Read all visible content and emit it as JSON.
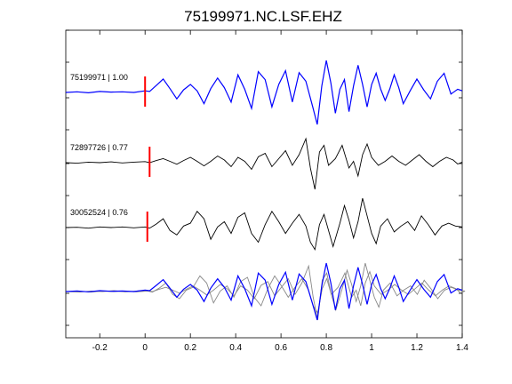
{
  "chart_data": {
    "type": "line",
    "title": "75199971.NC.LSF.EHZ",
    "xlabel": "",
    "ylabel": "",
    "xlim": [
      -0.35,
      1.4
    ],
    "x_ticks": [
      -0.2,
      0,
      0.2,
      0.4,
      0.6,
      0.8,
      1,
      1.2,
      1.4
    ],
    "x_tick_labels": [
      "-0.2",
      "0",
      "0.2",
      "0.4",
      "0.6",
      "0.8",
      "1",
      "1.2",
      "1.4"
    ],
    "grid": false,
    "legend": "none",
    "pick_time": 0,
    "colors": {
      "master": "#0000ff",
      "trace": "#000000",
      "overlay": "#888888",
      "pick": "#ff0000"
    },
    "traces": [
      {
        "label": "75199971 | 1.00",
        "pick_x": 0.0,
        "style": "master",
        "points": [
          [
            -0.35,
            0
          ],
          [
            -0.3,
            0.02
          ],
          [
            -0.25,
            -0.01
          ],
          [
            -0.2,
            0.03
          ],
          [
            -0.15,
            0.01
          ],
          [
            -0.1,
            0.02
          ],
          [
            -0.05,
            0
          ],
          [
            0,
            0.05
          ],
          [
            0.02,
            0.03
          ],
          [
            0.05,
            0.22
          ],
          [
            0.08,
            0.42
          ],
          [
            0.11,
            0.12
          ],
          [
            0.14,
            -0.2
          ],
          [
            0.17,
            0.08
          ],
          [
            0.2,
            0.25
          ],
          [
            0.23,
            0.05
          ],
          [
            0.26,
            -0.35
          ],
          [
            0.29,
            0.12
          ],
          [
            0.32,
            0.45
          ],
          [
            0.35,
            0.15
          ],
          [
            0.38,
            -0.3
          ],
          [
            0.41,
            0.55
          ],
          [
            0.44,
            0.1
          ],
          [
            0.47,
            -0.5
          ],
          [
            0.5,
            0.65
          ],
          [
            0.53,
            0.4
          ],
          [
            0.56,
            -0.45
          ],
          [
            0.59,
            0.25
          ],
          [
            0.62,
            0.68
          ],
          [
            0.65,
            -0.3
          ],
          [
            0.68,
            0.62
          ],
          [
            0.71,
            0.35
          ],
          [
            0.74,
            -0.45
          ],
          [
            0.76,
            -1.0
          ],
          [
            0.78,
            0.2
          ],
          [
            0.8,
            1.0
          ],
          [
            0.82,
            0.3
          ],
          [
            0.84,
            -0.65
          ],
          [
            0.86,
            0.1
          ],
          [
            0.88,
            0.4
          ],
          [
            0.9,
            -0.6
          ],
          [
            0.92,
            0.2
          ],
          [
            0.94,
            0.85
          ],
          [
            0.96,
            0.25
          ],
          [
            0.98,
            -0.45
          ],
          [
            1.0,
            0.25
          ],
          [
            1.02,
            0.6
          ],
          [
            1.04,
            0.1
          ],
          [
            1.06,
            -0.25
          ],
          [
            1.08,
            0.1
          ],
          [
            1.1,
            0.55
          ],
          [
            1.12,
            0.15
          ],
          [
            1.14,
            -0.35
          ],
          [
            1.17,
            0.05
          ],
          [
            1.2,
            0.42
          ],
          [
            1.23,
            0.08
          ],
          [
            1.26,
            -0.2
          ],
          [
            1.29,
            0.35
          ],
          [
            1.32,
            0.6
          ],
          [
            1.35,
            -0.05
          ],
          [
            1.38,
            0.1
          ],
          [
            1.4,
            0.05
          ]
        ]
      },
      {
        "label": "72897726 | 0.77",
        "pick_x": 0.02,
        "style": "trace",
        "points": [
          [
            -0.35,
            0
          ],
          [
            -0.3,
            -0.02
          ],
          [
            -0.25,
            0.02
          ],
          [
            -0.2,
            0
          ],
          [
            -0.15,
            0.03
          ],
          [
            -0.1,
            -0.01
          ],
          [
            -0.05,
            0.02
          ],
          [
            0,
            0.04
          ],
          [
            0.02,
            0
          ],
          [
            0.05,
            0.08
          ],
          [
            0.08,
            0.15
          ],
          [
            0.11,
            0.05
          ],
          [
            0.14,
            -0.06
          ],
          [
            0.17,
            0.08
          ],
          [
            0.2,
            0.2
          ],
          [
            0.23,
            0.05
          ],
          [
            0.26,
            -0.12
          ],
          [
            0.29,
            0.05
          ],
          [
            0.32,
            0.25
          ],
          [
            0.35,
            0.1
          ],
          [
            0.38,
            -0.15
          ],
          [
            0.41,
            0.2
          ],
          [
            0.44,
            0.05
          ],
          [
            0.47,
            -0.25
          ],
          [
            0.5,
            0.22
          ],
          [
            0.53,
            0.35
          ],
          [
            0.56,
            -0.15
          ],
          [
            0.59,
            0.15
          ],
          [
            0.62,
            0.45
          ],
          [
            0.65,
            -0.1
          ],
          [
            0.68,
            0.3
          ],
          [
            0.71,
            0.9
          ],
          [
            0.73,
            -0.2
          ],
          [
            0.75,
            -1.0
          ],
          [
            0.77,
            0.4
          ],
          [
            0.79,
            0.65
          ],
          [
            0.81,
            -0.1
          ],
          [
            0.84,
            0.15
          ],
          [
            0.87,
            0.65
          ],
          [
            0.9,
            -0.2
          ],
          [
            0.92,
            0.05
          ],
          [
            0.94,
            -0.5
          ],
          [
            0.96,
            0.3
          ],
          [
            0.98,
            0.7
          ],
          [
            1.0,
            0.2
          ],
          [
            1.03,
            -0.1
          ],
          [
            1.06,
            0.05
          ],
          [
            1.09,
            0.25
          ],
          [
            1.12,
            0.05
          ],
          [
            1.15,
            -0.1
          ],
          [
            1.18,
            0.1
          ],
          [
            1.21,
            0.3
          ],
          [
            1.24,
            0.05
          ],
          [
            1.27,
            -0.15
          ],
          [
            1.3,
            0.05
          ],
          [
            1.33,
            0.2
          ],
          [
            1.36,
            0.1
          ],
          [
            1.38,
            -0.05
          ],
          [
            1.4,
            0.02
          ]
        ]
      },
      {
        "label": "30052524 | 0.76",
        "pick_x": 0.01,
        "style": "trace",
        "points": [
          [
            -0.35,
            0
          ],
          [
            -0.3,
            0.01
          ],
          [
            -0.25,
            -0.02
          ],
          [
            -0.2,
            0.02
          ],
          [
            -0.15,
            0
          ],
          [
            -0.1,
            0.02
          ],
          [
            -0.05,
            -0.01
          ],
          [
            0,
            0.02
          ],
          [
            0.02,
            -0.02
          ],
          [
            0.05,
            0.12
          ],
          [
            0.08,
            0.3
          ],
          [
            0.11,
            -0.1
          ],
          [
            0.14,
            -0.25
          ],
          [
            0.17,
            0.05
          ],
          [
            0.2,
            0.15
          ],
          [
            0.23,
            0.55
          ],
          [
            0.26,
            0.3
          ],
          [
            0.29,
            -0.4
          ],
          [
            0.32,
            0.02
          ],
          [
            0.35,
            0.2
          ],
          [
            0.38,
            -0.2
          ],
          [
            0.41,
            0.35
          ],
          [
            0.44,
            0.5
          ],
          [
            0.47,
            -0.2
          ],
          [
            0.5,
            -0.5
          ],
          [
            0.53,
            0.1
          ],
          [
            0.56,
            0.55
          ],
          [
            0.59,
            0.2
          ],
          [
            0.62,
            -0.2
          ],
          [
            0.65,
            0.15
          ],
          [
            0.68,
            0.45
          ],
          [
            0.71,
            0.05
          ],
          [
            0.73,
            -0.5
          ],
          [
            0.75,
            -0.75
          ],
          [
            0.77,
            0.1
          ],
          [
            0.79,
            0.45
          ],
          [
            0.81,
            -0.1
          ],
          [
            0.83,
            -0.65
          ],
          [
            0.86,
            0.15
          ],
          [
            0.88,
            0.75
          ],
          [
            0.9,
            0.25
          ],
          [
            0.92,
            -0.35
          ],
          [
            0.94,
            0.2
          ],
          [
            0.96,
            1.0
          ],
          [
            0.98,
            0.4
          ],
          [
            1.0,
            -0.2
          ],
          [
            1.02,
            -0.55
          ],
          [
            1.04,
            0.05
          ],
          [
            1.07,
            0.3
          ],
          [
            1.1,
            -0.15
          ],
          [
            1.13,
            0.05
          ],
          [
            1.16,
            0.2
          ],
          [
            1.19,
            -0.1
          ],
          [
            1.22,
            0.4
          ],
          [
            1.25,
            0.1
          ],
          [
            1.28,
            -0.25
          ],
          [
            1.31,
            0.05
          ],
          [
            1.34,
            0.15
          ],
          [
            1.37,
            0.05
          ],
          [
            1.4,
            0.02
          ]
        ]
      }
    ]
  }
}
